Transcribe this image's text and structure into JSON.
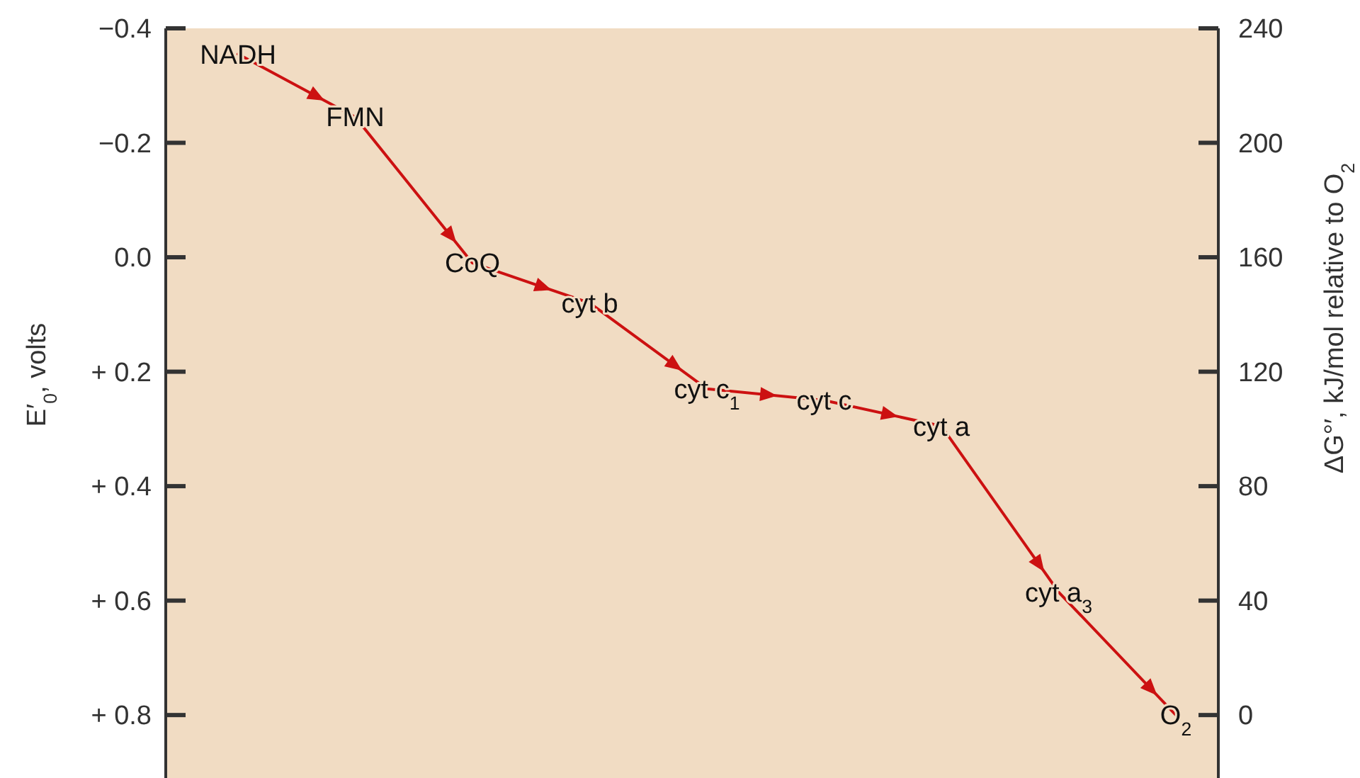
{
  "chart_data": {
    "type": "line",
    "categories": [
      null,
      null,
      null,
      null,
      null,
      null,
      null,
      null,
      null
    ],
    "series": [
      {
        "color": "#cc1111",
        "values": [
          -0.355,
          -0.245,
          0.01,
          0.08,
          0.23,
          0.25,
          0.295,
          0.585,
          0.8
        ]
      }
    ],
    "annotations": [
      {
        "text": "NADH",
        "y": -0.355
      },
      {
        "text": "FMN",
        "y": -0.245
      },
      {
        "text": "CoQ",
        "y": 0.01
      },
      {
        "text": "cyt b",
        "y": 0.08
      },
      {
        "text": "cyt c$_{1}$",
        "y": 0.23
      },
      {
        "text": "cyt c",
        "y": 0.25
      },
      {
        "text": "cyt a",
        "y": 0.295
      },
      {
        "text": "cyt a$_{3}$",
        "y": 0.585
      },
      {
        "text": "O$_{2}$",
        "y": 0.8
      }
    ],
    "ylabel": "E′$_{0}$, volts",
    "y2label": "ΔG°′, kJ/mol relative to O$_{2}$",
    "ylim": [
      0.91,
      -0.4
    ],
    "yticks": [
      {
        "value": -0.4,
        "label": "−0.4"
      },
      {
        "value": -0.2,
        "label": "−0.2"
      },
      {
        "value": 0,
        "label": "0.0"
      },
      {
        "value": 0.2,
        "label": "+ 0.2"
      },
      {
        "value": 0.4,
        "label": "+ 0.4"
      },
      {
        "value": 0.6,
        "label": "+ 0.6"
      },
      {
        "value": 0.8,
        "label": "+ 0.8"
      }
    ],
    "y2lim": [
      -22,
      240
    ],
    "y2ticks": [
      240,
      200,
      160,
      120,
      80,
      40,
      0
    ],
    "line_style": "solid",
    "grid": false
  }
}
